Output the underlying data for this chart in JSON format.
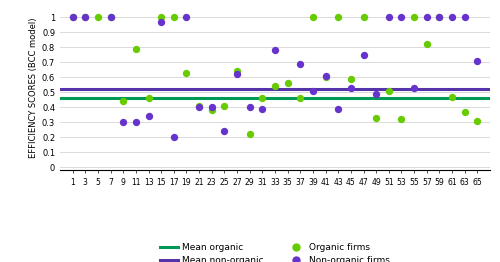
{
  "organic_x": [
    1,
    3,
    5,
    7,
    9,
    11,
    13,
    15,
    17,
    19,
    21,
    23,
    25,
    27,
    29,
    31,
    33,
    35,
    37,
    39,
    41,
    43,
    45,
    47,
    49,
    51,
    53,
    55,
    57,
    59,
    61,
    63,
    65
  ],
  "organic_y": [
    1.0,
    1.0,
    1.0,
    1.0,
    0.44,
    0.79,
    0.46,
    1.0,
    1.0,
    0.63,
    0.41,
    0.38,
    0.41,
    0.64,
    0.22,
    0.46,
    0.54,
    0.56,
    0.46,
    1.0,
    0.6,
    1.0,
    0.59,
    1.0,
    0.33,
    0.51,
    0.32,
    1.0,
    0.82,
    1.0,
    0.47,
    0.37,
    0.31
  ],
  "nonorganic_x": [
    1,
    3,
    7,
    9,
    11,
    13,
    15,
    17,
    19,
    21,
    23,
    25,
    27,
    29,
    31,
    33,
    37,
    39,
    41,
    43,
    45,
    47,
    49,
    51,
    53,
    55,
    57,
    59,
    61,
    63,
    65
  ],
  "nonorganic_y": [
    1.0,
    1.0,
    1.0,
    0.3,
    0.3,
    0.34,
    0.97,
    0.2,
    1.0,
    0.4,
    0.4,
    0.24,
    0.62,
    0.4,
    0.39,
    0.78,
    0.69,
    0.51,
    0.61,
    0.39,
    0.53,
    0.75,
    0.49,
    1.0,
    1.0,
    0.53,
    1.0,
    1.0,
    1.0,
    1.0,
    0.71
  ],
  "mean_organic": 0.465,
  "mean_nonorganic": 0.523,
  "organic_color": "#66cc00",
  "nonorganic_color": "#6633cc",
  "mean_organic_color": "#009955",
  "mean_nonorganic_color": "#5533aa",
  "ylabel": "EFFICIENCY SCORES (BCC model)",
  "ytick_labels": [
    "0",
    "0.1",
    "0.2",
    "0.3",
    "0.4",
    "0.5",
    "0.6",
    "0.7",
    "0.8",
    "0.9",
    "1"
  ],
  "ytick_vals": [
    0,
    0.1,
    0.2,
    0.3,
    0.4,
    0.5,
    0.6,
    0.7,
    0.8,
    0.9,
    1.0
  ],
  "xticks": [
    1,
    3,
    5,
    7,
    9,
    11,
    13,
    15,
    17,
    19,
    21,
    23,
    25,
    27,
    29,
    31,
    33,
    35,
    37,
    39,
    41,
    43,
    45,
    47,
    49,
    51,
    53,
    55,
    57,
    59,
    61,
    63,
    65
  ],
  "xlim": [
    -1,
    67
  ],
  "ylim": [
    -0.02,
    1.08
  ],
  "marker_size": 28,
  "legend_labels": [
    "Mean organic",
    "Mean non-organic",
    "Organic firms",
    "Non-organic firms"
  ]
}
